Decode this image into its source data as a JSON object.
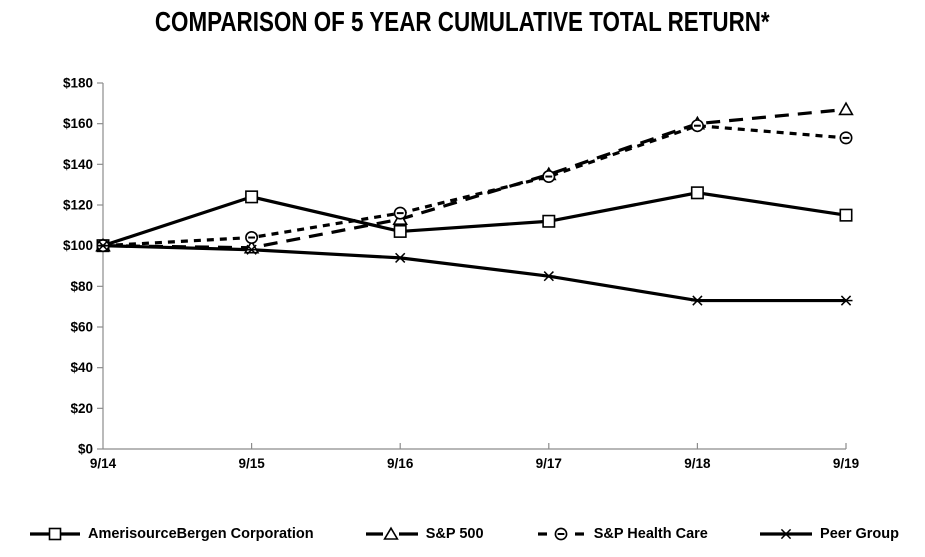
{
  "chart_data": {
    "type": "line",
    "title": "COMPARISON OF 5 YEAR CUMULATIVE TOTAL RETURN*",
    "categories": [
      "9/14",
      "9/15",
      "9/16",
      "9/17",
      "9/18",
      "9/19"
    ],
    "series": [
      {
        "name": "AmerisourceBergen Corporation",
        "values": [
          100,
          124,
          107,
          112,
          126,
          115
        ],
        "line_style": "solid",
        "marker": "square"
      },
      {
        "name": "S&P 500",
        "values": [
          100,
          99,
          113,
          135,
          160,
          167
        ],
        "line_style": "long-dash",
        "marker": "triangle"
      },
      {
        "name": "S&P Health Care",
        "values": [
          100,
          104,
          116,
          134,
          159,
          153
        ],
        "line_style": "short-dash",
        "marker": "circle-dash"
      },
      {
        "name": "Peer Group",
        "values": [
          100,
          98,
          94,
          85,
          73,
          73
        ],
        "line_style": "solid",
        "marker": "star"
      }
    ],
    "xlabel": "",
    "ylabel": "",
    "ylim": [
      0,
      180
    ],
    "y_tick_step": 20,
    "y_tick_labels": [
      "$0",
      "$20",
      "$40",
      "$60",
      "$80",
      "$100",
      "$120",
      "$140",
      "$160",
      "$180"
    ],
    "grid": "off",
    "legend_position": "bottom",
    "colors": {
      "series": "#000000",
      "axis": "#8c8c8c",
      "text": "#000000",
      "background": "#ffffff"
    }
  }
}
